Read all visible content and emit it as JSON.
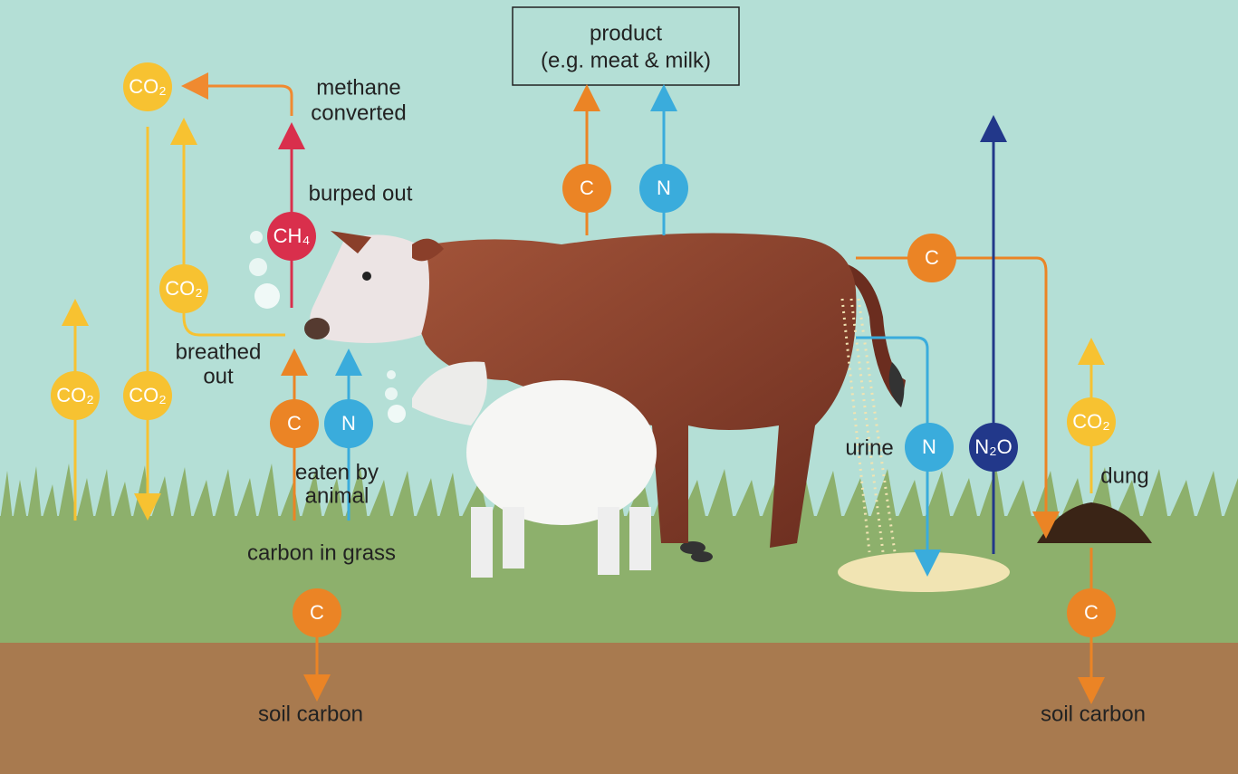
{
  "labels": {
    "product": [
      "product",
      "(e.g. meat & milk)"
    ],
    "methane": [
      "methane",
      "converted"
    ],
    "burped": "burped out",
    "breathed": [
      "breathed",
      "out"
    ],
    "eaten": [
      "eaten by",
      "animal"
    ],
    "grass": "carbon in grass",
    "soil_left": "soil carbon",
    "soil_right": "soil carbon",
    "urine": "urine",
    "dung": "dung"
  },
  "nodes": [
    {
      "label": "CO₂",
      "color": "#f7c231"
    },
    {
      "label": "CO₂",
      "color": "#f7c231"
    },
    {
      "label": "CO₂",
      "color": "#f7c231"
    },
    {
      "label": "CO₂",
      "color": "#f7c231"
    },
    {
      "label": "CH₄",
      "color": "#d92f4c"
    },
    {
      "label": "C",
      "color": "#eb8425"
    },
    {
      "label": "N",
      "color": "#3aacdc"
    },
    {
      "label": "C",
      "color": "#eb8425"
    },
    {
      "label": "N",
      "color": "#3aacdc"
    },
    {
      "label": "C",
      "color": "#eb8425"
    },
    {
      "label": "N",
      "color": "#3aacdc"
    },
    {
      "label": "N₂O",
      "color": "#22388a"
    },
    {
      "label": "CO₂",
      "color": "#f7c231"
    },
    {
      "label": "C",
      "color": "#eb8425"
    },
    {
      "label": "C",
      "color": "#eb8425"
    }
  ]
}
